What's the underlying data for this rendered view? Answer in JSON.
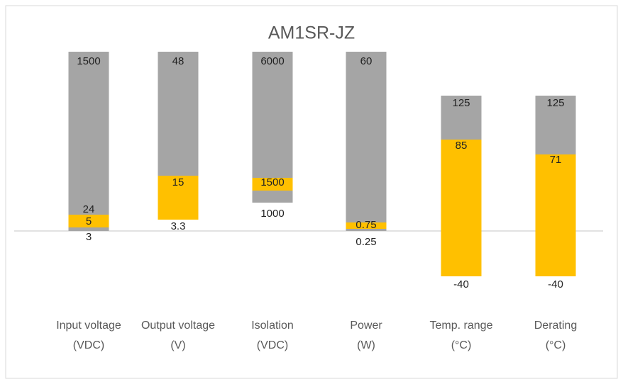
{
  "chart_data": {
    "type": "range-bar",
    "title": "AM1SR-JZ",
    "categories": [
      [
        "Input voltage",
        "(VDC)"
      ],
      [
        "Output voltage",
        "(V)"
      ],
      [
        "Isolation",
        "(VDC)"
      ],
      [
        "Power",
        "(W)"
      ],
      [
        "Temp. range",
        "(°C)"
      ],
      [
        "Derating",
        "(°C)"
      ]
    ],
    "values": [
      [
        3,
        5,
        24,
        1500
      ],
      [
        3.3,
        15,
        48
      ],
      [
        1000,
        1500,
        6000
      ],
      [
        0.25,
        0.75,
        60
      ],
      [
        -40,
        85,
        125
      ],
      [
        -40,
        71,
        125
      ]
    ],
    "colors": {
      "range": "#a5a5a5",
      "typical": "#ffc000"
    }
  }
}
